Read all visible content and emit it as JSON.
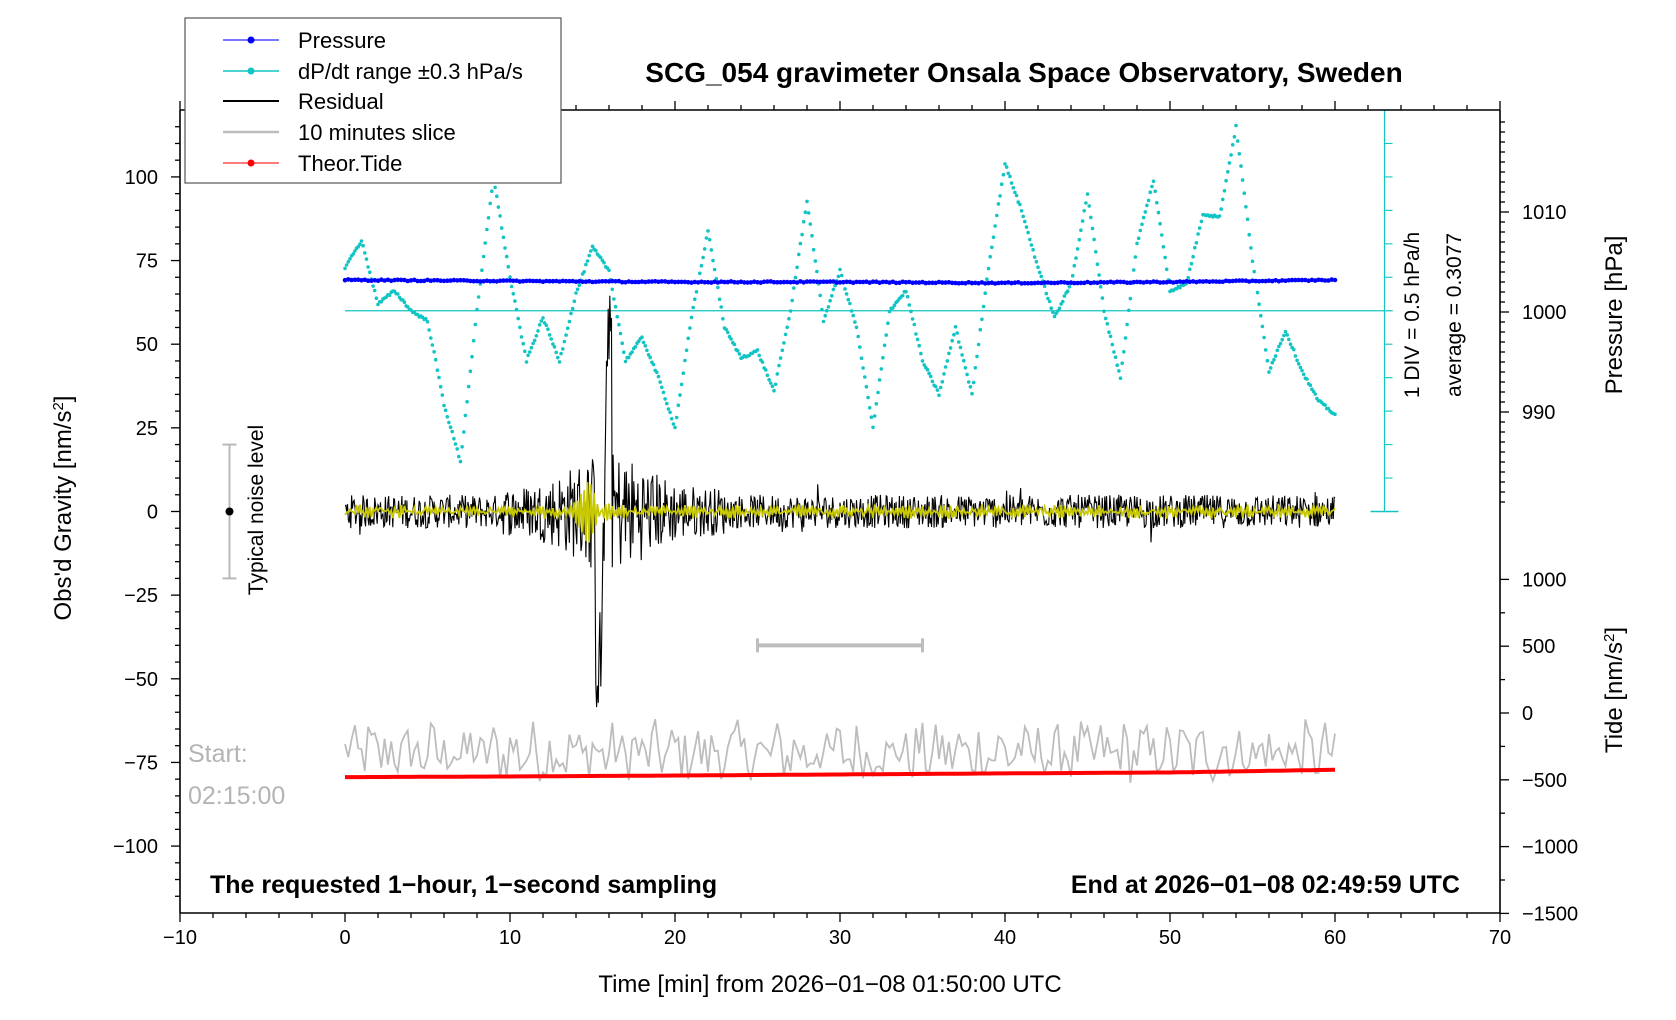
{
  "chart_data": {
    "type": "line",
    "title": "SCG_054 gravimeter Onsala Space Observatory, Sweden",
    "xlabel": "Time [min] from 2026−01−08 01:50:00 UTC",
    "ylabel": "Obs'd Gravity [nm/s²]",
    "ylabel_right_pressure": "Pressure [hPa]",
    "ylabel_right_tide": "Tide [nm/s²]",
    "xlim": [
      -10,
      70
    ],
    "ylim": [
      -120,
      120
    ],
    "pressure_ylim": [
      980,
      1020
    ],
    "tide_ylim": [
      -1500,
      1000
    ],
    "x_ticks": [
      -10,
      0,
      10,
      20,
      30,
      40,
      50,
      60,
      70
    ],
    "x_tick_labels": [
      "−10",
      "0",
      "10",
      "20",
      "30",
      "40",
      "50",
      "60",
      "70"
    ],
    "y_ticks": [
      -100,
      -75,
      -50,
      -25,
      0,
      25,
      50,
      75,
      100
    ],
    "y_tick_labels": [
      "−100",
      "−75",
      "−50",
      "−25",
      "0",
      "25",
      "50",
      "75",
      "100"
    ],
    "pressure_ticks": [
      990,
      1000,
      1010
    ],
    "pressure_tick_labels": [
      "990",
      "1000",
      "1010"
    ],
    "tide_ticks": [
      -1500,
      -1000,
      -500,
      0,
      500,
      1000
    ],
    "tide_tick_labels": [
      "−1500",
      "−1000",
      "−500",
      "0",
      "500",
      "1000"
    ],
    "legend": {
      "placement": "top-left",
      "entries": [
        "Pressure",
        "dP/dt range ±0.3 hPa/s",
        "Residual",
        "10 minutes slice",
        "Theor.Tide"
      ]
    },
    "colors": {
      "pressure": "#0000ff",
      "dpdt": "#12c4c4",
      "residual": "#000000",
      "slice": "#bdbdbd",
      "tide": "#ff0000",
      "filtered": "#c8c800"
    },
    "dpdt_scale": {
      "label_div": "1 DIV = 0.5 hPa/h",
      "label_avg": "average = 0.3077",
      "average": 0.3077
    },
    "noise_label": "Typical noise level",
    "noise_level": 20,
    "start_label": "Start:",
    "start_time": "02:15:00",
    "slice_range": [
      25,
      35
    ],
    "footer_left": "The requested 1−hour, 1−second sampling",
    "footer_right": "End at 2026−01−08 02:49:59 UTC",
    "series": [
      {
        "name": "Pressure",
        "unit": "hPa",
        "x": [
          0,
          10,
          20,
          30,
          40,
          50,
          60
        ],
        "values": [
          1003.2,
          1003.1,
          1003.0,
          1003.0,
          1002.9,
          1003.0,
          1003.2
        ]
      },
      {
        "name": "dP/dt range ±0.3 hPa/s",
        "unit": "nm/s² (plot units)",
        "x": [
          0,
          1,
          2,
          3,
          4,
          5,
          5.5,
          6,
          7,
          8,
          9,
          10,
          11,
          12,
          13,
          14,
          15,
          16,
          17,
          18,
          19,
          20,
          21,
          22,
          23,
          24,
          25,
          26,
          27,
          28,
          29,
          30,
          31,
          32,
          33,
          34,
          35,
          36,
          37,
          38,
          39,
          40,
          41,
          42,
          43,
          44,
          45,
          46,
          47,
          48,
          49,
          50,
          51,
          52,
          53,
          54,
          55,
          56,
          57,
          58,
          59,
          60
        ],
        "values": [
          73,
          81,
          62,
          66,
          60,
          57,
          45,
          32,
          15,
          60,
          100,
          70,
          45,
          58,
          45,
          65,
          79,
          72,
          45,
          52,
          40,
          25,
          58,
          84,
          55,
          46,
          48,
          36,
          60,
          93,
          57,
          72,
          55,
          25,
          60,
          66,
          45,
          35,
          55,
          35,
          73,
          104,
          90,
          73,
          58,
          68,
          95,
          60,
          40,
          80,
          99,
          66,
          68,
          89,
          88,
          115,
          75,
          42,
          54,
          42,
          33,
          29
        ]
      },
      {
        "name": "Residual",
        "unit": "nm/s²",
        "x": [
          0,
          10,
          15.5,
          16,
          20,
          30,
          40,
          50,
          60
        ],
        "values": [
          0,
          0,
          -46,
          60,
          0,
          0,
          0,
          0,
          0
        ]
      },
      {
        "name": "10 minutes slice",
        "unit": "nm/s²",
        "x": [
          0,
          10,
          20,
          30,
          40,
          50,
          60
        ],
        "values": [
          -72,
          -72,
          -72,
          -72,
          -72,
          -72,
          -72
        ]
      },
      {
        "name": "Theor.Tide",
        "unit": "nm/s²",
        "x": [
          0,
          10,
          20,
          30,
          40,
          50,
          60
        ],
        "values": [
          -480,
          -475,
          -468,
          -460,
          -452,
          -445,
          -425
        ]
      }
    ]
  }
}
